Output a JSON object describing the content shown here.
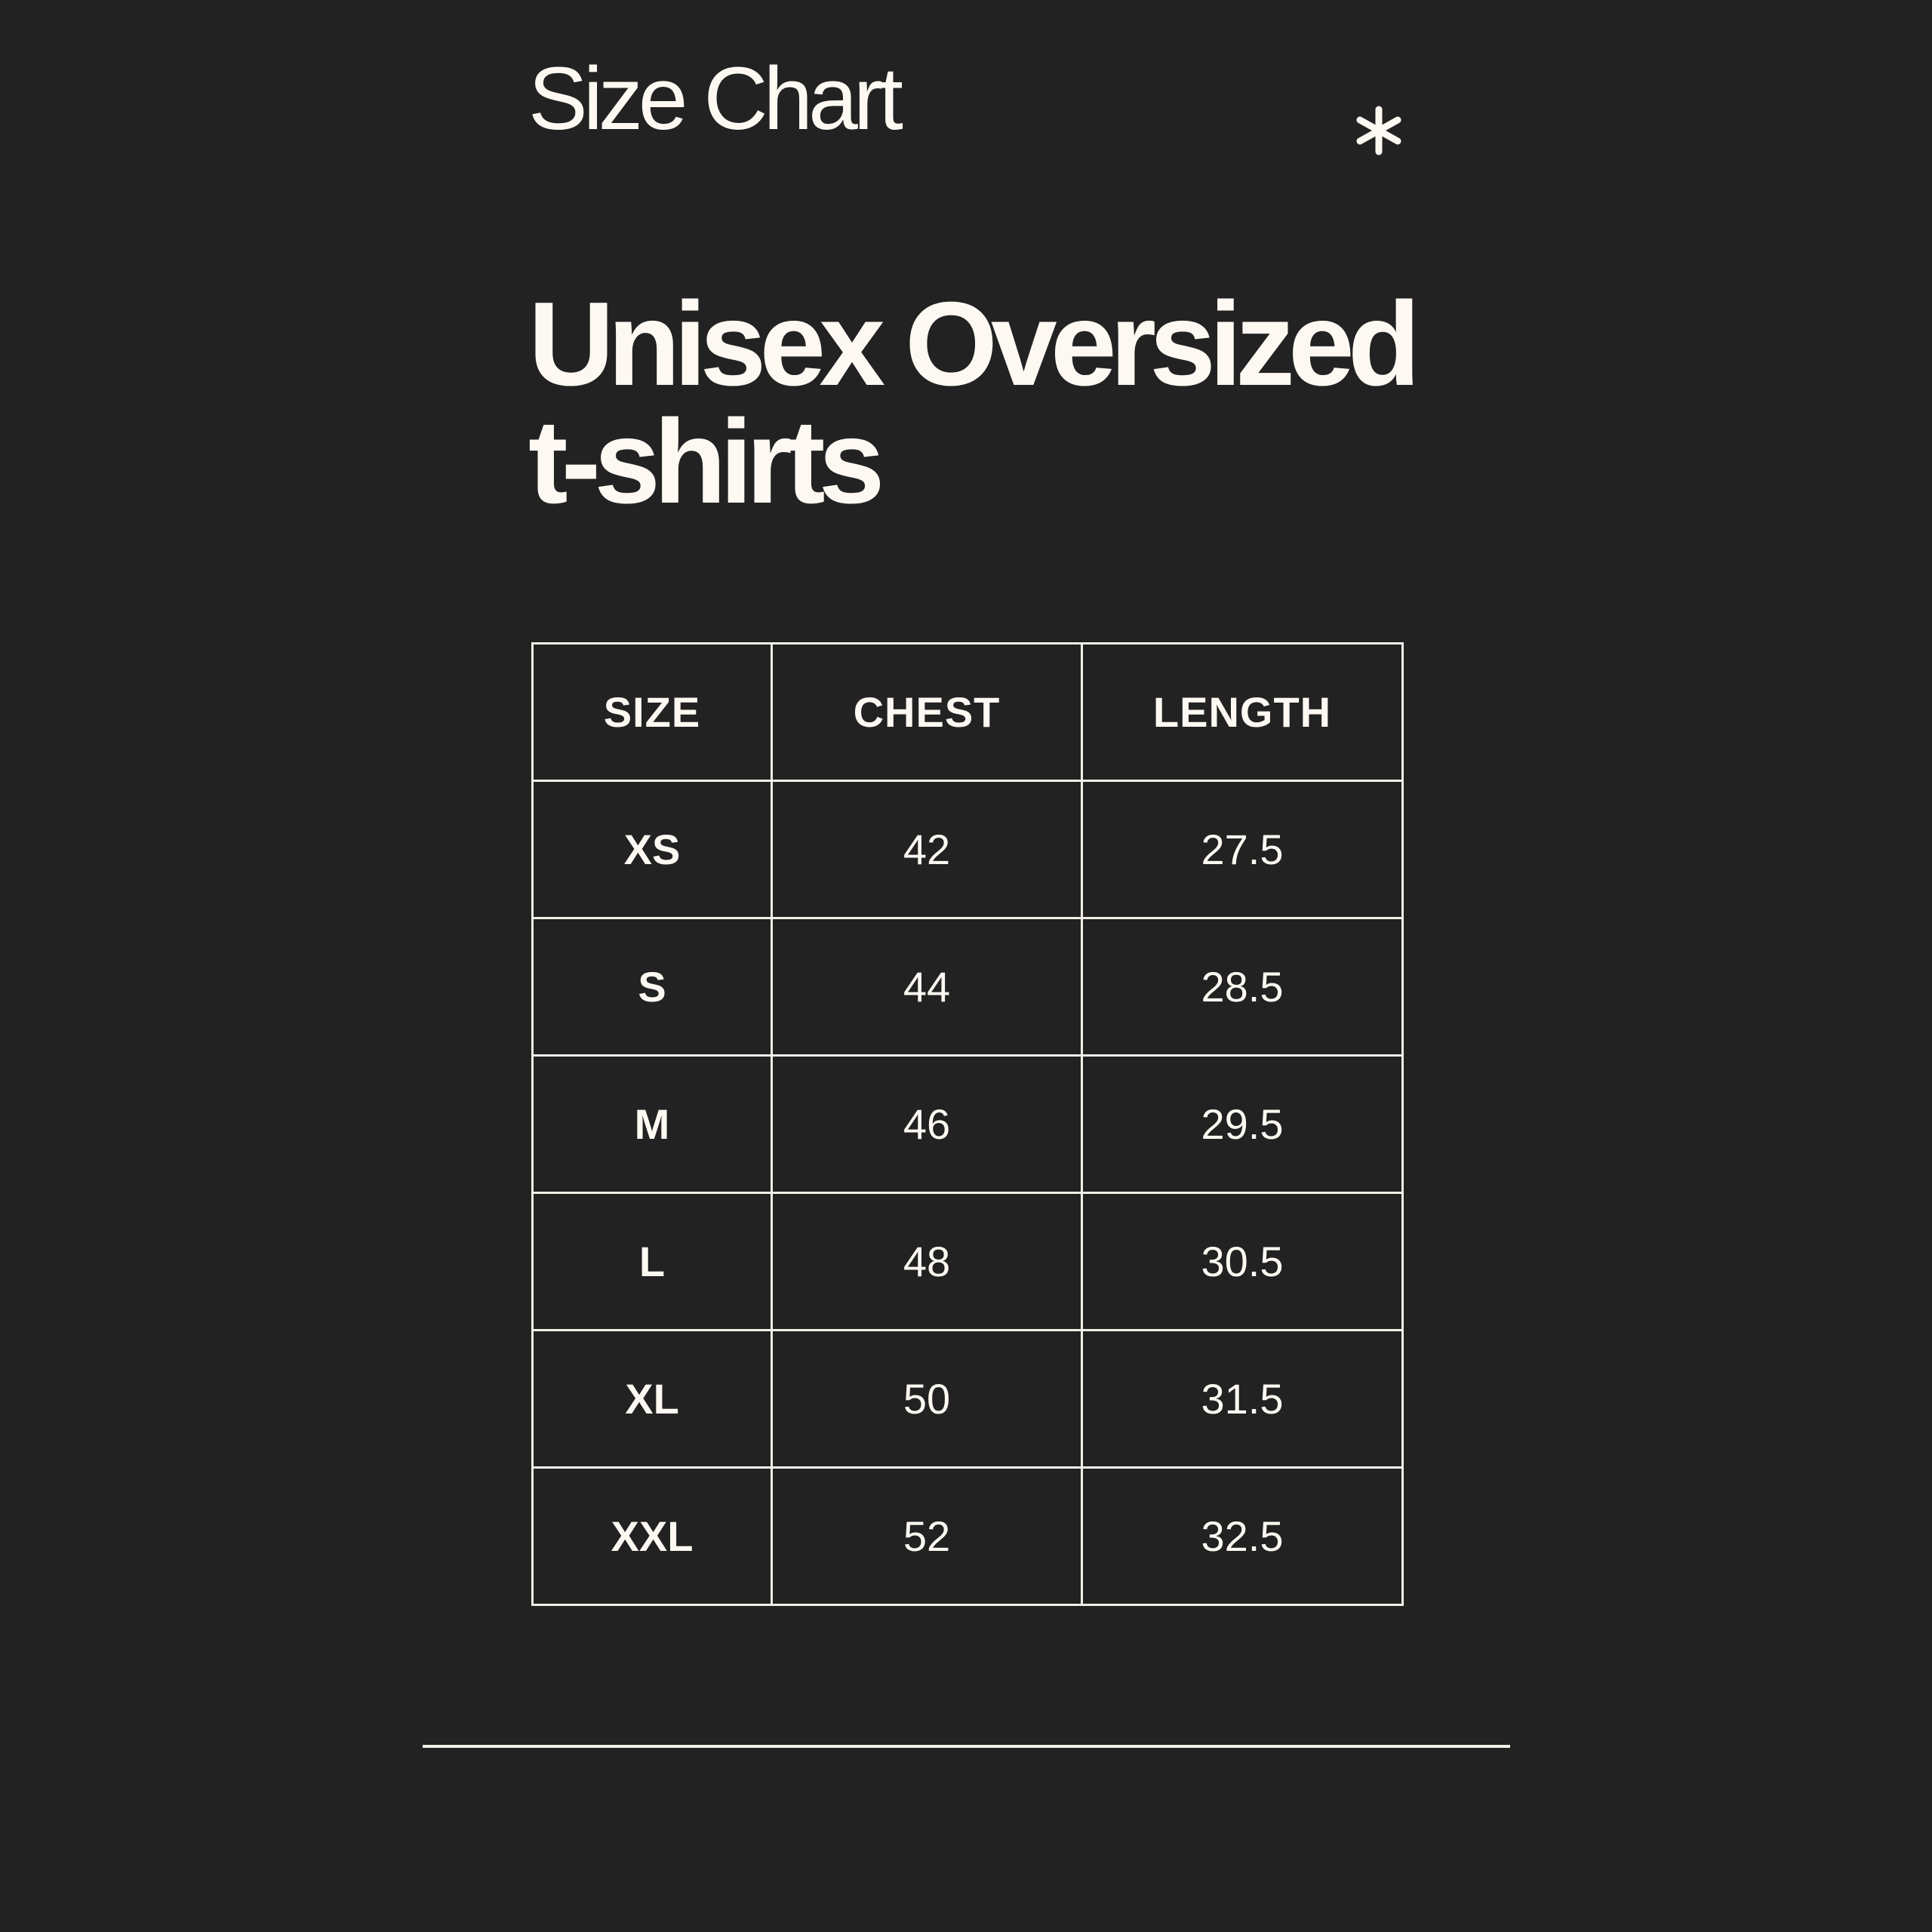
{
  "header": {
    "kicker": "Size Chart",
    "decoration_icon": "asterisk-icon"
  },
  "title": {
    "line1": "Unisex Oversized",
    "line2": "t-shirts"
  },
  "table": {
    "columns": [
      "SIZE",
      "CHEST",
      "LENGTH"
    ],
    "rows": [
      {
        "size": "XS",
        "chest": "42",
        "length": "27.5"
      },
      {
        "size": "S",
        "chest": "44",
        "length": "28.5"
      },
      {
        "size": "M",
        "chest": "46",
        "length": "29.5"
      },
      {
        "size": "L",
        "chest": "48",
        "length": "30.5"
      },
      {
        "size": "XL",
        "chest": "50",
        "length": "31.5"
      },
      {
        "size": "XXL",
        "chest": "52",
        "length": "32.5"
      }
    ]
  },
  "colors": {
    "background": "#222222",
    "text": "#fdf9f2"
  }
}
